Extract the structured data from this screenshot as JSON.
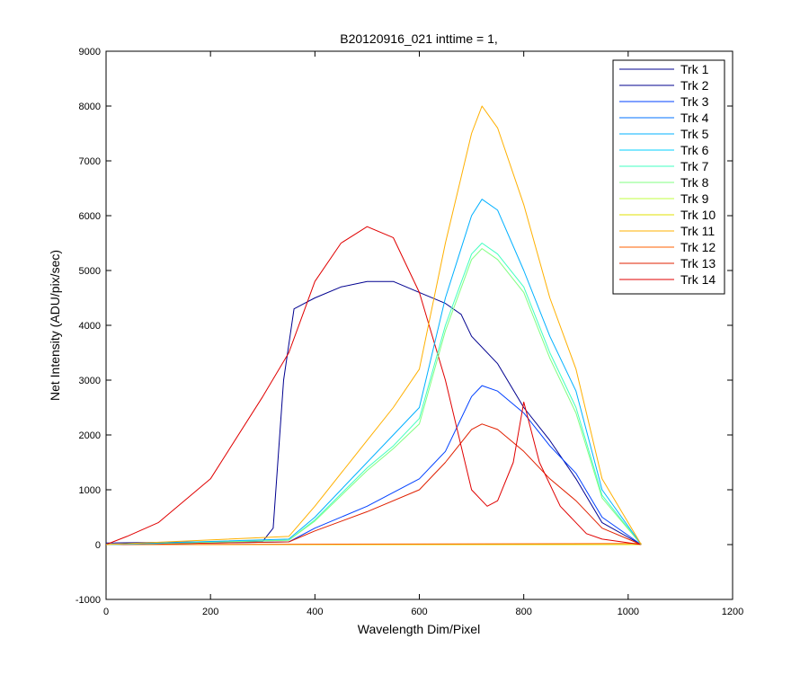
{
  "chart_data": {
    "type": "line",
    "title": "B20120916_021 inttime = 1,",
    "xlabel": "Wavelength Dim/Pixel",
    "ylabel": "Net Intensity (ADU/pix/sec)",
    "xlim": [
      0,
      1200
    ],
    "ylim": [
      -1000,
      9000
    ],
    "xticks": [
      0,
      200,
      400,
      600,
      800,
      1000,
      1200
    ],
    "yticks": [
      -1000,
      0,
      1000,
      2000,
      3000,
      4000,
      5000,
      6000,
      7000,
      8000,
      9000
    ],
    "grid": false,
    "legend_position": "top-right",
    "series": [
      {
        "name": "Trk 1",
        "color": "#00008f",
        "x": [
          0,
          300,
          1025
        ],
        "y": [
          0,
          0,
          0
        ]
      },
      {
        "name": "Trk 2",
        "color": "#00008f",
        "x": [
          0,
          300,
          320,
          340,
          360,
          380,
          400,
          450,
          500,
          550,
          600,
          650,
          680,
          700,
          750,
          800,
          850,
          900,
          950,
          1025
        ],
        "y": [
          30,
          60,
          300,
          3000,
          4300,
          4400,
          4500,
          4700,
          4800,
          4800,
          4600,
          4400,
          4200,
          3800,
          3300,
          2500,
          1900,
          1200,
          400,
          0
        ]
      },
      {
        "name": "Trk 3",
        "color": "#0040ff",
        "x": [
          0,
          350,
          400,
          500,
          600,
          650,
          700,
          720,
          750,
          800,
          850,
          900,
          950,
          1025
        ],
        "y": [
          0,
          50,
          300,
          700,
          1200,
          1700,
          2700,
          2900,
          2800,
          2400,
          1800,
          1300,
          500,
          0
        ]
      },
      {
        "name": "Trk 4",
        "color": "#0070ff",
        "x": [
          0,
          1025
        ],
        "y": [
          0,
          0
        ]
      },
      {
        "name": "Trk 5",
        "color": "#00b0ff",
        "x": [
          0,
          350,
          400,
          500,
          550,
          600,
          650,
          700,
          720,
          750,
          800,
          850,
          900,
          950,
          1025
        ],
        "y": [
          0,
          100,
          500,
          1500,
          2000,
          2500,
          4500,
          6000,
          6300,
          6100,
          5000,
          3800,
          2800,
          1000,
          0
        ]
      },
      {
        "name": "Trk 6",
        "color": "#00d0ff",
        "x": [
          0,
          1025
        ],
        "y": [
          0,
          0
        ]
      },
      {
        "name": "Trk 7",
        "color": "#40ffc0",
        "x": [
          0,
          350,
          400,
          500,
          550,
          600,
          650,
          700,
          720,
          750,
          800,
          850,
          900,
          950,
          1025
        ],
        "y": [
          0,
          80,
          450,
          1400,
          1800,
          2300,
          4000,
          5300,
          5500,
          5300,
          4700,
          3500,
          2500,
          900,
          0
        ]
      },
      {
        "name": "Trk 8",
        "color": "#80ff80",
        "x": [
          0,
          350,
          400,
          500,
          550,
          600,
          650,
          700,
          720,
          750,
          800,
          850,
          900,
          950,
          1025
        ],
        "y": [
          0,
          80,
          430,
          1350,
          1750,
          2200,
          3900,
          5200,
          5400,
          5200,
          4600,
          3400,
          2400,
          850,
          0
        ]
      },
      {
        "name": "Trk 9",
        "color": "#c0ff40",
        "x": [
          0,
          1025
        ],
        "y": [
          0,
          0
        ]
      },
      {
        "name": "Trk 10",
        "color": "#e0e000",
        "x": [
          0,
          1025
        ],
        "y": [
          0,
          0
        ]
      },
      {
        "name": "Trk 11",
        "color": "#ffb000",
        "x": [
          0,
          350,
          400,
          500,
          550,
          600,
          650,
          700,
          720,
          750,
          800,
          850,
          900,
          950,
          1025
        ],
        "y": [
          0,
          150,
          700,
          1900,
          2500,
          3200,
          5500,
          7500,
          8000,
          7600,
          6200,
          4500,
          3200,
          1200,
          0
        ]
      },
      {
        "name": "Trk 12",
        "color": "#ff6000",
        "x": [
          0,
          1025
        ],
        "y": [
          0,
          20
        ]
      },
      {
        "name": "Trk 13",
        "color": "#e02000",
        "x": [
          0,
          350,
          400,
          500,
          600,
          650,
          700,
          720,
          750,
          800,
          850,
          900,
          950,
          1025
        ],
        "y": [
          0,
          50,
          250,
          600,
          1000,
          1500,
          2100,
          2200,
          2100,
          1700,
          1200,
          800,
          300,
          0
        ]
      },
      {
        "name": "Trk 14",
        "color": "#e00000",
        "x": [
          0,
          40,
          100,
          200,
          300,
          350,
          400,
          450,
          500,
          550,
          600,
          650,
          700,
          730,
          750,
          780,
          800,
          830,
          870,
          920,
          950,
          1025
        ],
        "y": [
          0,
          150,
          400,
          1200,
          2700,
          3500,
          4800,
          5500,
          5800,
          5600,
          4600,
          3000,
          1000,
          700,
          800,
          1500,
          2600,
          1500,
          700,
          200,
          100,
          0
        ]
      }
    ]
  }
}
